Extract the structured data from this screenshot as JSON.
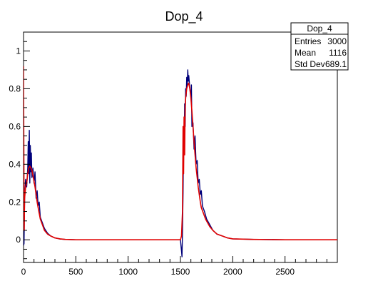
{
  "chart_data": {
    "type": "line",
    "title": "Dop_4",
    "xlabel": "",
    "ylabel": "",
    "xlim": [
      0,
      3000
    ],
    "ylim": [
      -0.12,
      1.1
    ],
    "xticks": [
      0,
      500,
      1000,
      1500,
      2000,
      2500
    ],
    "yticks": [
      0,
      0.2,
      0.4,
      0.6,
      0.8,
      1
    ],
    "grid": false,
    "stats_box": {
      "title": "Dop_4",
      "rows": [
        {
          "label": "Entries",
          "value": "3000"
        },
        {
          "label": "Mean",
          "value": "1116"
        },
        {
          "label": "Std Dev",
          "value": "689.1"
        }
      ]
    },
    "series": [
      {
        "color": "#00007a",
        "points": [
          [
            0,
            -0.03
          ],
          [
            5,
            -0.02
          ],
          [
            10,
            0.22
          ],
          [
            20,
            0.32
          ],
          [
            30,
            0.28
          ],
          [
            40,
            0.38
          ],
          [
            45,
            0.52
          ],
          [
            50,
            0.35
          ],
          [
            55,
            0.58
          ],
          [
            60,
            0.3
          ],
          [
            65,
            0.5
          ],
          [
            70,
            0.36
          ],
          [
            75,
            0.46
          ],
          [
            80,
            0.33
          ],
          [
            90,
            0.38
          ],
          [
            100,
            0.3
          ],
          [
            110,
            0.36
          ],
          [
            120,
            0.22
          ],
          [
            130,
            0.26
          ],
          [
            140,
            0.18
          ],
          [
            150,
            0.2
          ],
          [
            160,
            0.12
          ],
          [
            180,
            0.09
          ],
          [
            200,
            0.06
          ],
          [
            230,
            0.035
          ],
          [
            260,
            0.02
          ],
          [
            300,
            0.01
          ],
          [
            350,
            0.004
          ],
          [
            400,
            0.002
          ],
          [
            500,
            0.0
          ],
          [
            1000,
            0.0
          ],
          [
            1450,
            0.0
          ],
          [
            1500,
            0.0
          ],
          [
            1510,
            -0.06
          ],
          [
            1515,
            -0.09
          ],
          [
            1520,
            0.05
          ],
          [
            1525,
            0.25
          ],
          [
            1530,
            0.55
          ],
          [
            1535,
            0.45
          ],
          [
            1540,
            0.72
          ],
          [
            1545,
            0.6
          ],
          [
            1550,
            0.8
          ],
          [
            1555,
            0.76
          ],
          [
            1560,
            0.86
          ],
          [
            1565,
            0.82
          ],
          [
            1570,
            0.9
          ],
          [
            1575,
            0.84
          ],
          [
            1580,
            0.87
          ],
          [
            1590,
            0.8
          ],
          [
            1600,
            0.76
          ],
          [
            1605,
            0.82
          ],
          [
            1610,
            0.6
          ],
          [
            1620,
            0.62
          ],
          [
            1630,
            0.48
          ],
          [
            1640,
            0.55
          ],
          [
            1650,
            0.4
          ],
          [
            1660,
            0.42
          ],
          [
            1670,
            0.3
          ],
          [
            1680,
            0.32
          ],
          [
            1690,
            0.24
          ],
          [
            1700,
            0.26
          ],
          [
            1710,
            0.18
          ],
          [
            1730,
            0.15
          ],
          [
            1750,
            0.11
          ],
          [
            1780,
            0.08
          ],
          [
            1810,
            0.05
          ],
          [
            1850,
            0.03
          ],
          [
            1900,
            0.02
          ],
          [
            1950,
            0.01
          ],
          [
            2000,
            0.005
          ],
          [
            2200,
            0.002
          ],
          [
            2500,
            0.0
          ],
          [
            3000,
            0.0
          ]
        ]
      },
      {
        "color": "#e00000",
        "points": [
          [
            0,
            0.92
          ],
          [
            3,
            0.5
          ],
          [
            6,
            0.05
          ],
          [
            10,
            0.22
          ],
          [
            20,
            0.28
          ],
          [
            30,
            0.3
          ],
          [
            40,
            0.35
          ],
          [
            50,
            0.38
          ],
          [
            60,
            0.39
          ],
          [
            70,
            0.38
          ],
          [
            80,
            0.37
          ],
          [
            90,
            0.34
          ],
          [
            100,
            0.31
          ],
          [
            110,
            0.28
          ],
          [
            120,
            0.24
          ],
          [
            130,
            0.2
          ],
          [
            140,
            0.17
          ],
          [
            150,
            0.14
          ],
          [
            160,
            0.11
          ],
          [
            180,
            0.08
          ],
          [
            200,
            0.05
          ],
          [
            230,
            0.03
          ],
          [
            260,
            0.02
          ],
          [
            300,
            0.01
          ],
          [
            350,
            0.005
          ],
          [
            400,
            0.002
          ],
          [
            500,
            0.0
          ],
          [
            1000,
            0.0
          ],
          [
            1450,
            0.0
          ],
          [
            1500,
            0.0
          ],
          [
            1510,
            0.02
          ],
          [
            1520,
            0.15
          ],
          [
            1525,
            0.6
          ],
          [
            1530,
            0.35
          ],
          [
            1535,
            0.65
          ],
          [
            1540,
            0.45
          ],
          [
            1545,
            0.7
          ],
          [
            1550,
            0.75
          ],
          [
            1560,
            0.8
          ],
          [
            1570,
            0.82
          ],
          [
            1580,
            0.83
          ],
          [
            1590,
            0.8
          ],
          [
            1600,
            0.75
          ],
          [
            1610,
            0.68
          ],
          [
            1620,
            0.6
          ],
          [
            1630,
            0.52
          ],
          [
            1640,
            0.45
          ],
          [
            1650,
            0.38
          ],
          [
            1660,
            0.33
          ],
          [
            1670,
            0.28
          ],
          [
            1680,
            0.24
          ],
          [
            1690,
            0.2
          ],
          [
            1700,
            0.17
          ],
          [
            1720,
            0.14
          ],
          [
            1740,
            0.11
          ],
          [
            1760,
            0.09
          ],
          [
            1780,
            0.07
          ],
          [
            1810,
            0.05
          ],
          [
            1850,
            0.03
          ],
          [
            1900,
            0.02
          ],
          [
            1950,
            0.01
          ],
          [
            2000,
            0.005
          ],
          [
            2200,
            0.002
          ],
          [
            2500,
            0.0
          ],
          [
            3000,
            0.0
          ]
        ]
      }
    ]
  }
}
